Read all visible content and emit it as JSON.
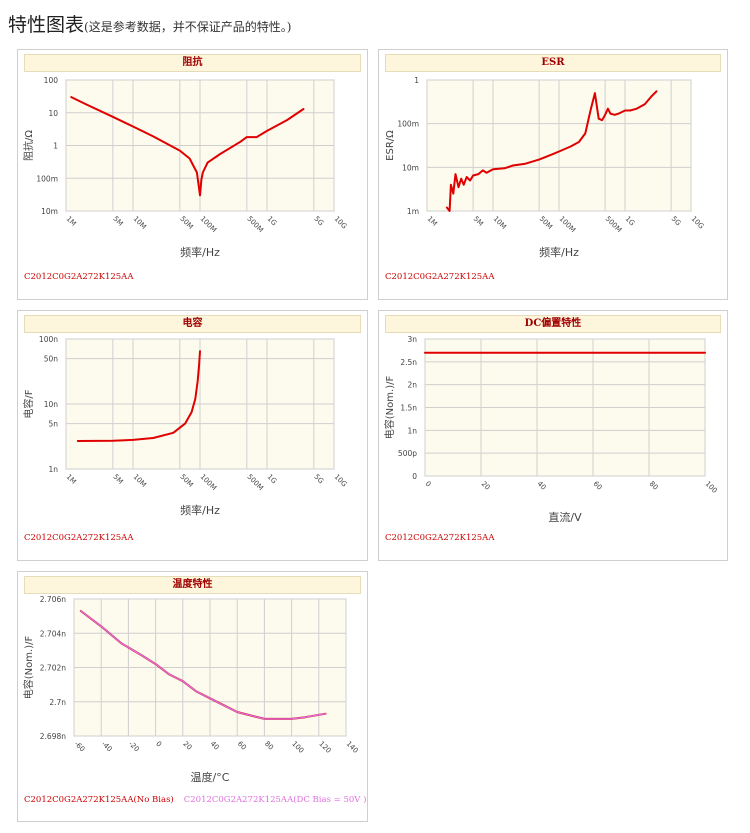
{
  "page": {
    "title": "特性图表",
    "note": "(这是参考数据，并不保证产品的特性。)"
  },
  "colors": {
    "curve": "#e00000",
    "curve2": "#e070e0",
    "plot_bg": "#fdfbee",
    "grid": "#cfcfcf"
  },
  "chart_data": [
    {
      "id": "impedance",
      "type": "line",
      "title": "阻抗",
      "xlabel": "频率/Hz",
      "ylabel": "阻抗/Ω",
      "xscale": "log",
      "yscale": "log",
      "xlim": [
        1000000,
        10000000000
      ],
      "ylim": [
        0.01,
        100
      ],
      "xticks": [
        {
          "v": 1000000,
          "label": "1M"
        },
        {
          "v": 5000000,
          "label": "5M"
        },
        {
          "v": 10000000,
          "label": "10M"
        },
        {
          "v": 50000000,
          "label": "50M"
        },
        {
          "v": 100000000,
          "label": "100M"
        },
        {
          "v": 500000000,
          "label": "500M"
        },
        {
          "v": 1000000000,
          "label": "1G"
        },
        {
          "v": 5000000000,
          "label": "5G"
        },
        {
          "v": 10000000000,
          "label": "10G"
        }
      ],
      "yticks": [
        {
          "v": 0.01,
          "label": "10m"
        },
        {
          "v": 0.1,
          "label": "100m"
        },
        {
          "v": 1,
          "label": "1"
        },
        {
          "v": 10,
          "label": "10"
        },
        {
          "v": 100,
          "label": "100"
        }
      ],
      "series": [
        {
          "x": [
            1200000,
            2000000,
            5000000,
            10000000,
            20000000,
            50000000,
            70000000,
            90000000,
            100000000,
            105000000,
            110000000,
            130000000,
            200000000,
            400000000,
            500000000,
            700000000,
            1000000000,
            2000000000,
            3500000000
          ],
          "y": [
            30,
            18,
            7.5,
            3.8,
            1.9,
            0.7,
            0.4,
            0.15,
            0.03,
            0.09,
            0.15,
            0.3,
            0.55,
            1.3,
            1.8,
            1.8,
            2.8,
            6,
            13
          ]
        }
      ],
      "footer": [
        "C2012C0G2A272K125AA"
      ]
    },
    {
      "id": "esr",
      "type": "line",
      "title": "ESR",
      "xlabel": "频率/Hz",
      "ylabel": "ESR/Ω",
      "xscale": "log",
      "yscale": "log",
      "xlim": [
        1000000,
        10000000000
      ],
      "ylim": [
        0.001,
        1
      ],
      "xticks": [
        {
          "v": 1000000,
          "label": "1M"
        },
        {
          "v": 5000000,
          "label": "5M"
        },
        {
          "v": 10000000,
          "label": "10M"
        },
        {
          "v": 50000000,
          "label": "50M"
        },
        {
          "v": 100000000,
          "label": "100M"
        },
        {
          "v": 500000000,
          "label": "500M"
        },
        {
          "v": 1000000000,
          "label": "1G"
        },
        {
          "v": 5000000000,
          "label": "5G"
        },
        {
          "v": 10000000000,
          "label": "10G"
        }
      ],
      "yticks": [
        {
          "v": 0.001,
          "label": "1m"
        },
        {
          "v": 0.01,
          "label": "10m"
        },
        {
          "v": 0.1,
          "label": "100m"
        },
        {
          "v": 1,
          "label": "1"
        }
      ],
      "series": [
        {
          "x": [
            2000000,
            2200000,
            2300000,
            2500000,
            2700000,
            3000000,
            3300000,
            3600000,
            4000000,
            4500000,
            5000000,
            6000000,
            7000000,
            8000000,
            10000000,
            15000000,
            20000000,
            30000000,
            50000000,
            80000000,
            100000000,
            150000000,
            200000000,
            250000000,
            300000000,
            350000000,
            400000000,
            450000000,
            500000000,
            550000000,
            600000000,
            700000000,
            800000000,
            1000000000,
            1200000000,
            1500000000,
            2000000000,
            2500000000,
            3000000000
          ],
          "y": [
            0.0012,
            0.001,
            0.004,
            0.0025,
            0.007,
            0.0035,
            0.0055,
            0.004,
            0.006,
            0.005,
            0.0065,
            0.007,
            0.0085,
            0.0075,
            0.009,
            0.0095,
            0.011,
            0.012,
            0.015,
            0.02,
            0.023,
            0.03,
            0.038,
            0.06,
            0.2,
            0.5,
            0.13,
            0.12,
            0.16,
            0.22,
            0.17,
            0.16,
            0.17,
            0.2,
            0.2,
            0.22,
            0.28,
            0.42,
            0.55
          ]
        }
      ],
      "footer": [
        "C2012C0G2A272K125AA"
      ]
    },
    {
      "id": "capacitance",
      "type": "line",
      "title": "电容",
      "xlabel": "频率/Hz",
      "ylabel": "电容/F",
      "xscale": "log",
      "yscale": "log",
      "xlim": [
        1000000,
        10000000000
      ],
      "ylim": [
        1e-09,
        1e-07
      ],
      "xticks": [
        {
          "v": 1000000,
          "label": "1M"
        },
        {
          "v": 5000000,
          "label": "5M"
        },
        {
          "v": 10000000,
          "label": "10M"
        },
        {
          "v": 50000000,
          "label": "50M"
        },
        {
          "v": 100000000,
          "label": "100M"
        },
        {
          "v": 500000000,
          "label": "500M"
        },
        {
          "v": 1000000000,
          "label": "1G"
        },
        {
          "v": 5000000000,
          "label": "5G"
        },
        {
          "v": 10000000000,
          "label": "10G"
        }
      ],
      "yticks": [
        {
          "v": 1e-09,
          "label": "1n"
        },
        {
          "v": 5e-09,
          "label": "5n"
        },
        {
          "v": 1e-08,
          "label": "10n"
        },
        {
          "v": 5e-08,
          "label": "50n"
        },
        {
          "v": 1e-07,
          "label": "100n"
        }
      ],
      "series": [
        {
          "x": [
            1500000,
            5000000,
            10000000,
            20000000,
            40000000,
            60000000,
            75000000,
            85000000,
            92000000,
            97000000,
            100000000
          ],
          "y": [
            2.7e-09,
            2.72e-09,
            2.8e-09,
            3e-09,
            3.6e-09,
            5e-09,
            7.5e-09,
            1.2e-08,
            2.2e-08,
            4e-08,
            6.5e-08
          ]
        }
      ],
      "footer": [
        "C2012C0G2A272K125AA"
      ]
    },
    {
      "id": "dc-bias",
      "type": "line",
      "title": "DC偏置特性",
      "xlabel": "直流/V",
      "ylabel": "电容(Nom.)/F",
      "xscale": "linear",
      "yscale": "linear",
      "xlim": [
        0,
        100
      ],
      "ylim": [
        0,
        3e-09
      ],
      "xticks": [
        {
          "v": 0,
          "label": "0"
        },
        {
          "v": 20,
          "label": "20"
        },
        {
          "v": 40,
          "label": "40"
        },
        {
          "v": 60,
          "label": "60"
        },
        {
          "v": 80,
          "label": "80"
        },
        {
          "v": 100,
          "label": "100"
        }
      ],
      "yticks": [
        {
          "v": 0,
          "label": "0"
        },
        {
          "v": 5e-10,
          "label": "500p"
        },
        {
          "v": 1e-09,
          "label": "1n"
        },
        {
          "v": 1.5e-09,
          "label": "1.5n"
        },
        {
          "v": 2e-09,
          "label": "2n"
        },
        {
          "v": 2.5e-09,
          "label": "2.5n"
        },
        {
          "v": 3e-09,
          "label": "3n"
        }
      ],
      "series": [
        {
          "x": [
            0,
            100
          ],
          "y": [
            2.7e-09,
            2.7e-09
          ]
        }
      ],
      "footer": [
        "C2012C0G2A272K125AA"
      ]
    },
    {
      "id": "temperature",
      "type": "line",
      "title": "温度特性",
      "xlabel": "温度/°C",
      "ylabel": "电容(Nom.)/F",
      "xscale": "linear",
      "yscale": "linear",
      "xlim": [
        -60,
        140
      ],
      "ylim": [
        2.698e-09,
        2.706e-09
      ],
      "xticks": [
        {
          "v": -60,
          "label": "-60"
        },
        {
          "v": -40,
          "label": "-40"
        },
        {
          "v": -20,
          "label": "-20"
        },
        {
          "v": 0,
          "label": "0"
        },
        {
          "v": 20,
          "label": "20"
        },
        {
          "v": 40,
          "label": "40"
        },
        {
          "v": 60,
          "label": "60"
        },
        {
          "v": 80,
          "label": "80"
        },
        {
          "v": 100,
          "label": "100"
        },
        {
          "v": 120,
          "label": "120"
        },
        {
          "v": 140,
          "label": "140"
        }
      ],
      "yticks": [
        {
          "v": 2.698e-09,
          "label": "2.698n"
        },
        {
          "v": 2.7e-09,
          "label": "2.7n"
        },
        {
          "v": 2.702e-09,
          "label": "2.702n"
        },
        {
          "v": 2.704e-09,
          "label": "2.704n"
        },
        {
          "v": 2.706e-09,
          "label": "2.706n"
        }
      ],
      "series": [
        {
          "name": "C2012C0G2A272K125AA(No Bias)",
          "color": "#cc0000",
          "x": [
            -55,
            -40,
            -25,
            -10,
            0,
            10,
            20,
            30,
            40,
            50,
            60,
            70,
            80,
            90,
            100,
            110,
            125
          ],
          "y": [
            2.7053e-09,
            2.7044e-09,
            2.7034e-09,
            2.7027e-09,
            2.7022e-09,
            2.7016e-09,
            2.7012e-09,
            2.7006e-09,
            2.7002e-09,
            2.6998e-09,
            2.6994e-09,
            2.6992e-09,
            2.699e-09,
            2.699e-09,
            2.699e-09,
            2.6991e-09,
            2.6993e-09
          ]
        },
        {
          "name": "C2012C0G2A272K125AA(DC Bias = 50V )",
          "color": "#e070e0",
          "x": [
            -55,
            -40,
            -25,
            -10,
            0,
            10,
            20,
            30,
            40,
            50,
            60,
            70,
            80,
            90,
            100,
            110,
            125
          ],
          "y": [
            2.7053e-09,
            2.7044e-09,
            2.7034e-09,
            2.7027e-09,
            2.7022e-09,
            2.7016e-09,
            2.7012e-09,
            2.7006e-09,
            2.7002e-09,
            2.6998e-09,
            2.6994e-09,
            2.6992e-09,
            2.699e-09,
            2.699e-09,
            2.699e-09,
            2.6991e-09,
            2.6993e-09
          ]
        }
      ],
      "footer": [
        "C2012C0G2A272K125AA(No Bias)",
        "C2012C0G2A272K125AA(DC Bias = 50V )"
      ]
    }
  ]
}
